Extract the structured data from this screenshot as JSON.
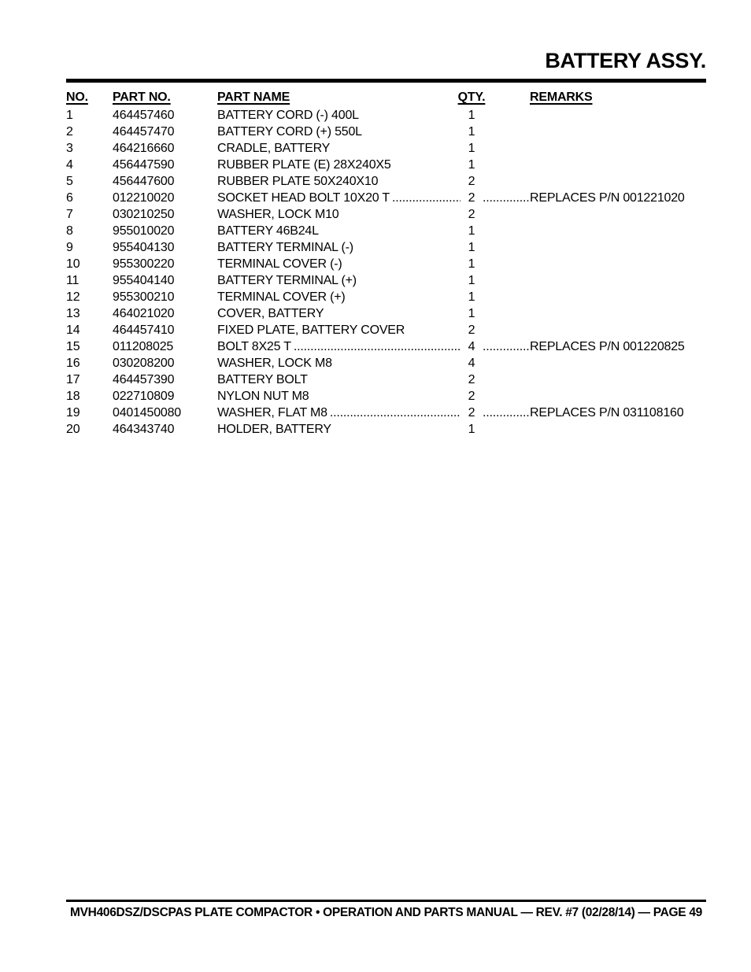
{
  "page": {
    "title": "BATTERY ASSY.",
    "footer": "MVH406DSZ/DSCPAS PLATE COMPACTOR • OPERATION AND PARTS MANUAL — REV. #7 (02/28/14) — PAGE 49"
  },
  "colors": {
    "text": "#000000",
    "background": "#ffffff",
    "rule": "#000000"
  },
  "table": {
    "headers": {
      "no": "NO.",
      "part_no": "PART NO.",
      "part_name": "PART NAME",
      "qty": "QTY.",
      "remarks": "REMARKS"
    },
    "rows": [
      {
        "no": "1",
        "part_no": "464457460",
        "part_name": "BATTERY CORD (-) 400L",
        "qty": "1",
        "remarks": ""
      },
      {
        "no": "2",
        "part_no": "464457470",
        "part_name": "BATTERY CORD (+) 550L",
        "qty": "1",
        "remarks": ""
      },
      {
        "no": "3",
        "part_no": "464216660",
        "part_name": "CRADLE, BATTERY",
        "qty": "1",
        "remarks": ""
      },
      {
        "no": "4",
        "part_no": "456447590",
        "part_name": "RUBBER PLATE (E) 28X240X5",
        "qty": "1",
        "remarks": ""
      },
      {
        "no": "5",
        "part_no": "456447600",
        "part_name": "RUBBER PLATE 50X240X10",
        "qty": "2",
        "remarks": ""
      },
      {
        "no": "6",
        "part_no": "012210020",
        "part_name": "SOCKET HEAD BOLT 10X20 T",
        "qty": "2",
        "remarks": "REPLACES P/N 001221020"
      },
      {
        "no": "7",
        "part_no": "030210250",
        "part_name": "WASHER, LOCK M10",
        "qty": "2",
        "remarks": ""
      },
      {
        "no": "8",
        "part_no": "955010020",
        "part_name": "BATTERY 46B24L",
        "qty": "1",
        "remarks": ""
      },
      {
        "no": "9",
        "part_no": "955404130",
        "part_name": "BATTERY TERMINAL (-)",
        "qty": "1",
        "remarks": ""
      },
      {
        "no": "10",
        "part_no": "955300220",
        "part_name": "TERMINAL COVER (-)",
        "qty": "1",
        "remarks": ""
      },
      {
        "no": "11",
        "part_no": "955404140",
        "part_name": "BATTERY TERMINAL (+)",
        "qty": "1",
        "remarks": ""
      },
      {
        "no": "12",
        "part_no": "955300210",
        "part_name": "TERMINAL COVER (+)",
        "qty": "1",
        "remarks": ""
      },
      {
        "no": "13",
        "part_no": "464021020",
        "part_name": "COVER, BATTERY",
        "qty": "1",
        "remarks": ""
      },
      {
        "no": "14",
        "part_no": "464457410",
        "part_name": "FIXED PLATE, BATTERY COVER",
        "qty": "2",
        "remarks": ""
      },
      {
        "no": "15",
        "part_no": "011208025",
        "part_name": "BOLT 8X25 T",
        "qty": "4",
        "remarks": "REPLACES P/N 001220825"
      },
      {
        "no": "16",
        "part_no": "030208200",
        "part_name": "WASHER, LOCK M8",
        "qty": "4",
        "remarks": ""
      },
      {
        "no": "17",
        "part_no": "464457390",
        "part_name": "BATTERY BOLT",
        "qty": "2",
        "remarks": ""
      },
      {
        "no": "18",
        "part_no": "022710809",
        "part_name": "NYLON NUT M8",
        "qty": "2",
        "remarks": ""
      },
      {
        "no": "19",
        "part_no": "0401450080",
        "part_name": "WASHER, FLAT M8",
        "qty": "2",
        "remarks": "REPLACES P/N 031108160"
      },
      {
        "no": "20",
        "part_no": "464343740",
        "part_name": "HOLDER, BATTERY",
        "qty": "1",
        "remarks": ""
      }
    ]
  }
}
